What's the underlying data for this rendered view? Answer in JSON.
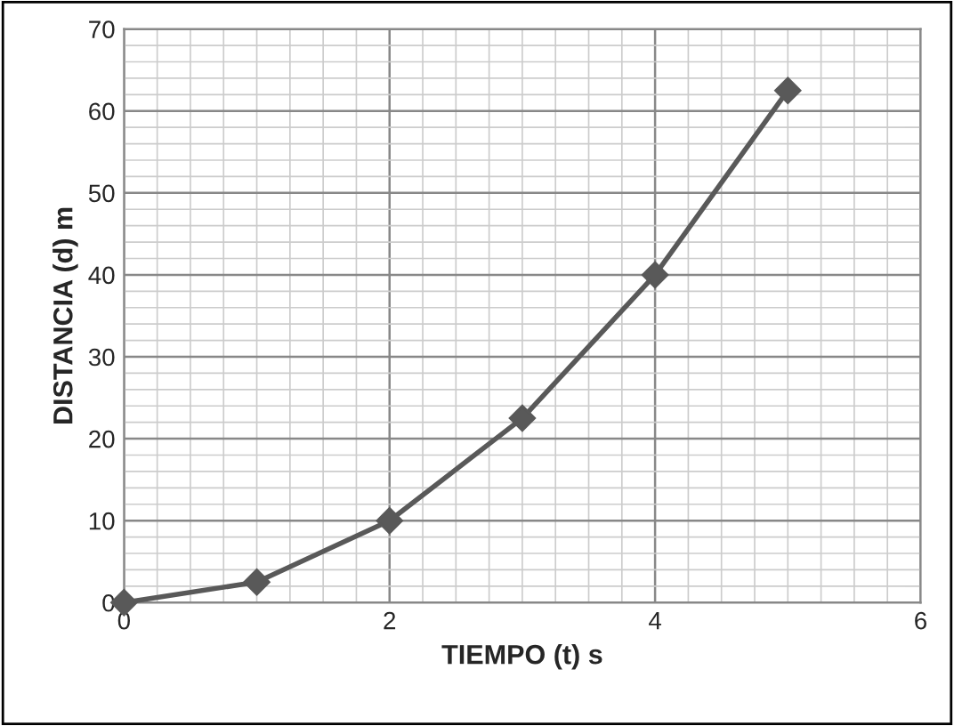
{
  "chart_data": {
    "type": "line",
    "xlabel": "TIEMPO (t) s",
    "ylabel": "DISTANCIA (d) m",
    "x": [
      0,
      1,
      2,
      3,
      4,
      5
    ],
    "series": [
      {
        "color": "#595959",
        "values": [
          0,
          2.5,
          10,
          22.5,
          40,
          62.5
        ]
      }
    ],
    "xlim": [
      0,
      6
    ],
    "ylim": [
      0,
      70
    ],
    "xticks": [
      0,
      2,
      4,
      6
    ],
    "yticks": [
      0,
      10,
      20,
      30,
      40,
      50,
      60,
      70
    ],
    "grid": true,
    "marker": "diamond",
    "line_style": "solid",
    "legend": false
  }
}
